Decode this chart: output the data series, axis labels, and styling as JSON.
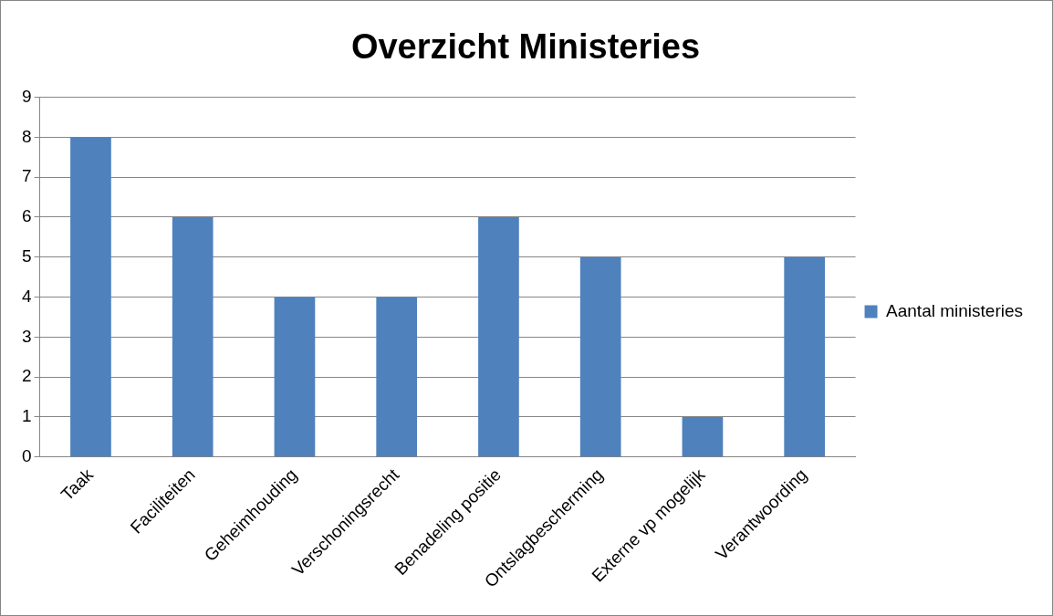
{
  "chart_data": {
    "type": "bar",
    "title": "Overzicht Ministeries",
    "categories": [
      "Taak",
      "Faciliteiten",
      "Geheimhouding",
      "Verschoningsrecht",
      "Benadeling positie",
      "Ontslagbescherming",
      "Externe vp mogelijk",
      "Verantwoording"
    ],
    "series": [
      {
        "name": "Aantal ministeries",
        "color": "#4f81bd",
        "values": [
          8,
          6,
          4,
          4,
          6,
          5,
          1,
          5
        ]
      }
    ],
    "ylim": [
      0,
      9
    ],
    "yticks": [
      0,
      1,
      2,
      3,
      4,
      5,
      6,
      7,
      8,
      9
    ],
    "grid": "y",
    "legend": "right"
  }
}
